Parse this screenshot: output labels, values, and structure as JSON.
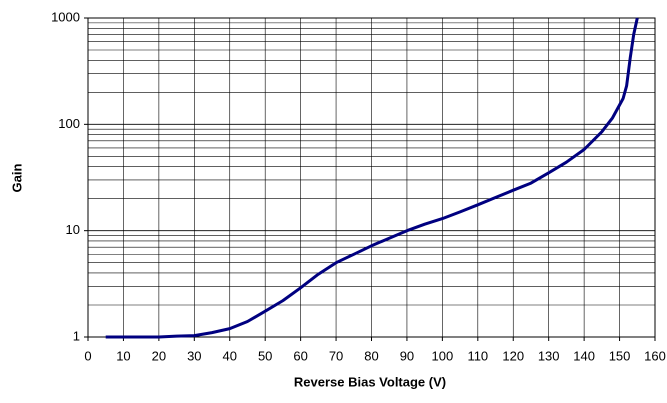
{
  "chart_data": {
    "type": "line",
    "xlabel": "Reverse Bias Voltage (V)",
    "ylabel": "Gain",
    "x": [
      5,
      10,
      20,
      25,
      30,
      35,
      40,
      45,
      50,
      55,
      60,
      65,
      70,
      75,
      80,
      85,
      90,
      95,
      100,
      105,
      110,
      115,
      120,
      125,
      130,
      135,
      140,
      145,
      148,
      151,
      152,
      153,
      154,
      155
    ],
    "series": [
      {
        "name": "Gain",
        "color": "#000080",
        "values": [
          1,
          1,
          1,
          1.02,
          1.03,
          1.1,
          1.2,
          1.4,
          1.75,
          2.2,
          2.9,
          3.9,
          5.0,
          6.0,
          7.2,
          8.5,
          10,
          11.5,
          13,
          15,
          17.5,
          20.5,
          24,
          28,
          35,
          44,
          58,
          85,
          115,
          175,
          230,
          420,
          700,
          1000
        ]
      }
    ],
    "xlim": [
      0,
      160
    ],
    "xticks": [
      0,
      10,
      20,
      30,
      40,
      50,
      60,
      70,
      80,
      90,
      100,
      110,
      120,
      130,
      140,
      150,
      160
    ],
    "ylim": [
      1,
      1000
    ],
    "yticks": [
      1,
      10,
      100,
      1000
    ],
    "ylog": true,
    "grid": true
  }
}
